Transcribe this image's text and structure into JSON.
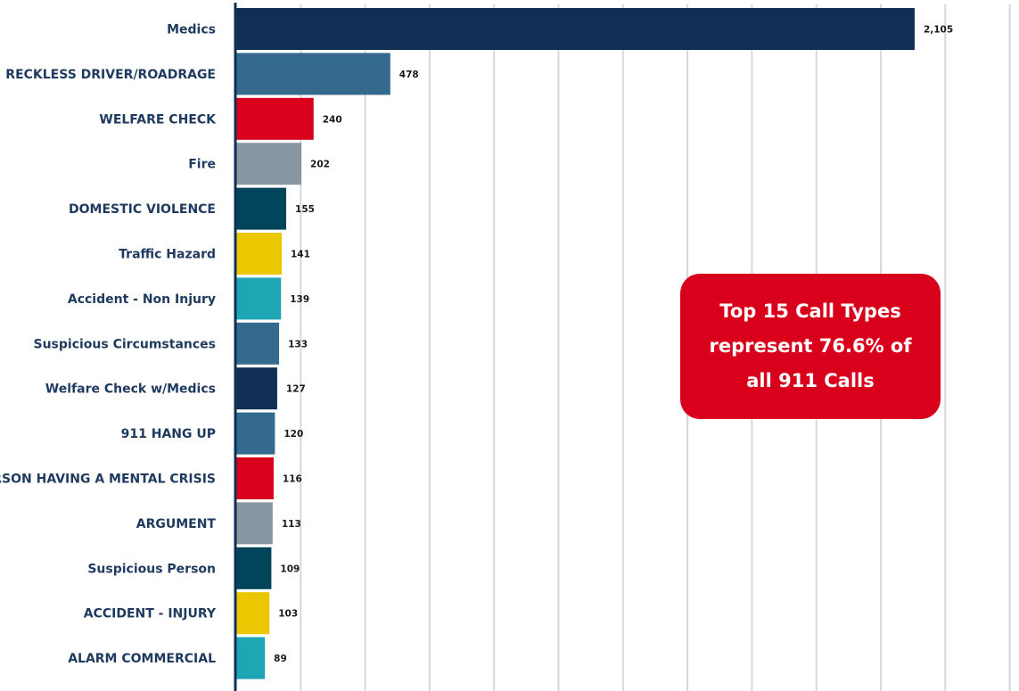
{
  "chart_data": {
    "type": "bar",
    "orientation": "horizontal",
    "categories": [
      "Medics",
      "RECKLESS DRIVER/ROADRAGE",
      "WELFARE CHECK",
      "Fire",
      "DOMESTIC VIOLENCE",
      "Traffic Hazard",
      "Accident - Non Injury",
      "Suspicious Circumstances",
      "Welfare Check w/Medics",
      "911 HANG UP",
      "PERSON HAVING A MENTAL CRISIS",
      "ARGUMENT",
      "Suspicious Person",
      "ACCIDENT - INJURY",
      "ALARM COMMERCIAL"
    ],
    "values": [
      2105,
      478,
      240,
      202,
      155,
      141,
      139,
      133,
      127,
      120,
      116,
      113,
      109,
      103,
      89
    ],
    "value_labels": [
      "2,105",
      "478",
      "240",
      "202",
      "155",
      "141",
      "139",
      "133",
      "127",
      "120",
      "116",
      "113",
      "109",
      "103",
      "89"
    ],
    "bar_colors": [
      "#0f2f55",
      "#336a8e",
      "#d9001b",
      "#8797a2",
      "#024459",
      "#eac700",
      "#1fa6b5",
      "#336a8e",
      "#0f2f55",
      "#336a8e",
      "#d9001b",
      "#8797a2",
      "#024459",
      "#eac700",
      "#1fa6b5"
    ],
    "xlim": [
      0,
      2400
    ],
    "grid": true,
    "title": "",
    "xlabel": "",
    "ylabel": "",
    "label_color": "#1f3a5f",
    "axis_color": "#0f2f55",
    "grid_color": "#d3d9de"
  },
  "callout": {
    "text": "Top 15 Call Types represent 76.6% of all 911 Calls",
    "color": "#d9001b"
  }
}
